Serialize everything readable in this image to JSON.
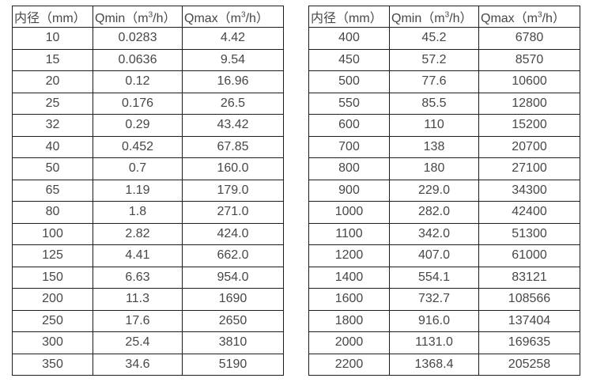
{
  "colors": {
    "background": "#ffffff",
    "border": "#1c1c1c",
    "text": "#474747"
  },
  "tables": [
    {
      "headers": [
        "内径（mm）",
        "Qmin（m³/h）",
        "Qmax（m³/h）"
      ],
      "rows": [
        [
          "10",
          "0.0283",
          "4.42"
        ],
        [
          "15",
          "0.0636",
          "9.54"
        ],
        [
          "20",
          "0.12",
          "16.96"
        ],
        [
          "25",
          "0.176",
          "26.5"
        ],
        [
          "32",
          "0.29",
          "43.42"
        ],
        [
          "40",
          "0.452",
          "67.85"
        ],
        [
          "50",
          "0.7",
          "160.0"
        ],
        [
          "65",
          "1.19",
          "179.0"
        ],
        [
          "80",
          "1.8",
          "271.0"
        ],
        [
          "100",
          "2.82",
          "424.0"
        ],
        [
          "125",
          "4.41",
          "662.0"
        ],
        [
          "150",
          "6.63",
          "954.0"
        ],
        [
          "200",
          "11.3",
          "1690"
        ],
        [
          "250",
          "17.6",
          "2650"
        ],
        [
          "300",
          "25.4",
          "3810"
        ],
        [
          "350",
          "34.6",
          "5190"
        ]
      ]
    },
    {
      "headers": [
        "内径（mm）",
        "Qmin（m³/h）",
        "Qmax（m³/h）"
      ],
      "rows": [
        [
          "400",
          "45.2",
          "6780"
        ],
        [
          "450",
          "57.2",
          "8570"
        ],
        [
          "500",
          "77.6",
          "10600"
        ],
        [
          "550",
          "85.5",
          "12800"
        ],
        [
          "600",
          "110",
          "15200"
        ],
        [
          "700",
          "138",
          "20700"
        ],
        [
          "800",
          "180",
          "27100"
        ],
        [
          "900",
          "229.0",
          "34300"
        ],
        [
          "1000",
          "282.0",
          "42400"
        ],
        [
          "1100",
          "342.0",
          "51300"
        ],
        [
          "1200",
          "407.0",
          "61000"
        ],
        [
          "1400",
          "554.1",
          "83121"
        ],
        [
          "1600",
          "732.7",
          "108566"
        ],
        [
          "1800",
          "916.0",
          "137404"
        ],
        [
          "2000",
          "1131.0",
          "169635"
        ],
        [
          "2200",
          "1368.4",
          "205258"
        ]
      ]
    }
  ]
}
